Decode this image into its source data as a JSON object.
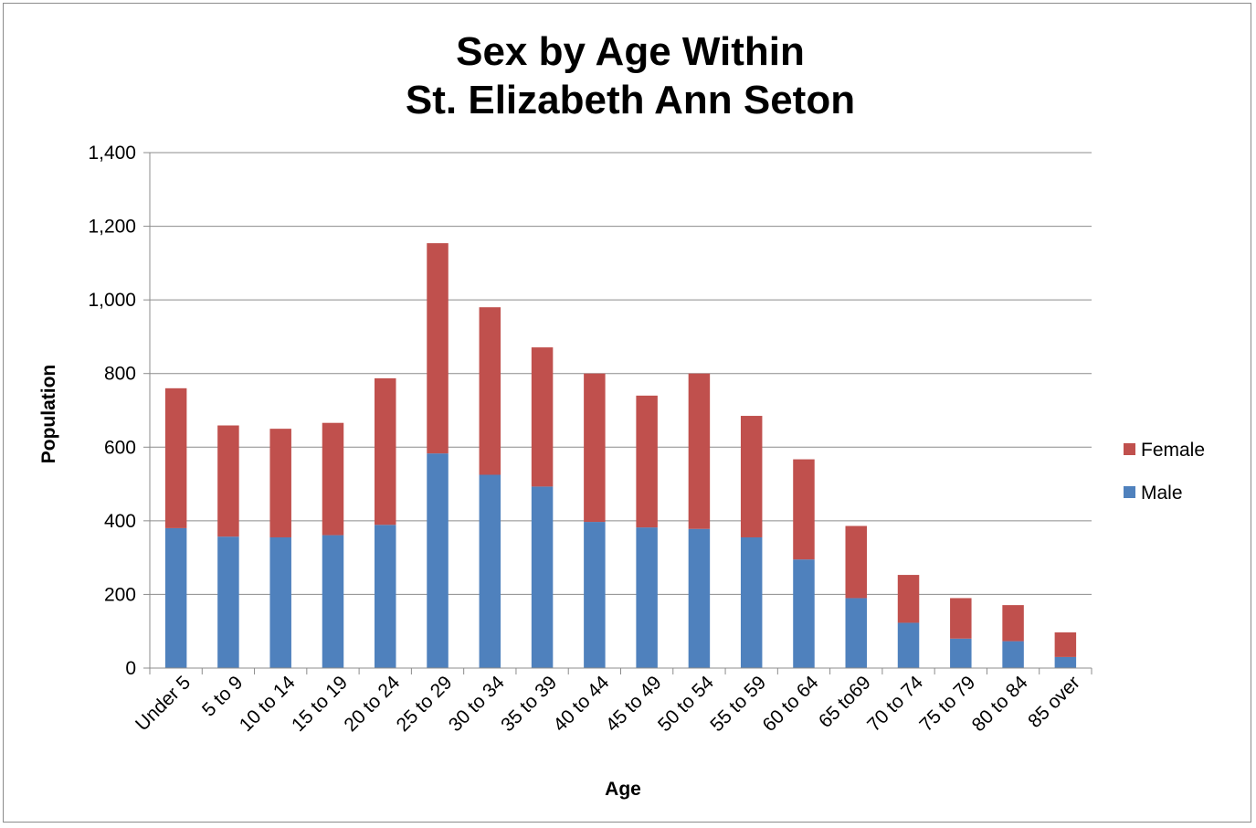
{
  "chart_data": {
    "type": "bar",
    "stacked": true,
    "title": [
      "Sex by Age Within",
      "St. Elizabeth Ann Seton"
    ],
    "xlabel": "Age",
    "ylabel": "Population",
    "ylim": [
      0,
      1400
    ],
    "y_ticks": [
      0,
      200,
      400,
      600,
      800,
      1000,
      1200,
      1400
    ],
    "y_tick_labels": [
      "0",
      "200",
      "400",
      "600",
      "800",
      "1,000",
      "1,200",
      "1,400"
    ],
    "grid": true,
    "legend_position": "right",
    "categories": [
      "Under 5",
      "5 to 9",
      "10 to 14",
      "15 to 19",
      "20 to 24",
      "25 to 29",
      "30 to 34",
      "35 to 39",
      "40 to 44",
      "45 to 49",
      "50 to 54",
      "55 to 59",
      "60 to 64",
      "65 to69",
      "70 to 74",
      "75 to 79",
      "80 to 84",
      "85 over"
    ],
    "series": [
      {
        "name": "Male",
        "color": "#4f81bd",
        "values": [
          380,
          357,
          355,
          361,
          389,
          583,
          525,
          493,
          397,
          382,
          378,
          355,
          295,
          190,
          123,
          80,
          73,
          30
        ]
      },
      {
        "name": "Female",
        "color": "#c0504d",
        "values": [
          380,
          302,
          295,
          305,
          398,
          571,
          455,
          378,
          403,
          358,
          422,
          330,
          272,
          196,
          130,
          110,
          98,
          67
        ]
      }
    ]
  }
}
